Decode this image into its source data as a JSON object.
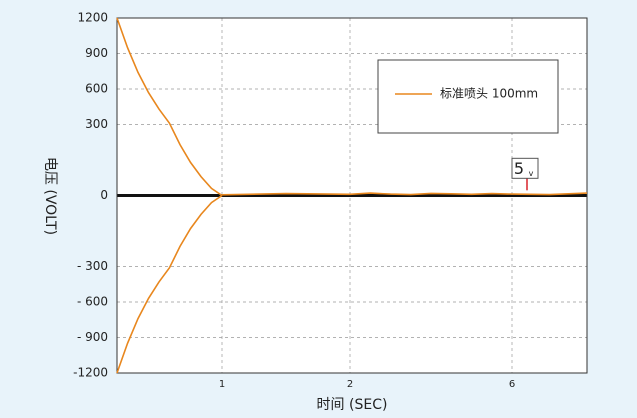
{
  "chart_data": {
    "type": "line",
    "x_label": "时间 (SEC)",
    "y_label": "电压 (VOLT)",
    "xlim": [
      0,
      7
    ],
    "xticks": [
      1,
      2,
      6
    ],
    "ylim": [
      -1200,
      1200
    ],
    "yticks": [
      1200,
      900,
      600,
      300,
      0,
      {
        "value": -300,
        "label": "- 300"
      },
      {
        "value": -600,
        "label": "- 600"
      },
      {
        "value": -900,
        "label": "- 900"
      },
      -1200
    ],
    "grid": true,
    "legend": "upper right",
    "series": [
      {
        "name": "标准喷头 100mm",
        "color": "#e8871e",
        "x": [
          0,
          0.1,
          0.2,
          0.3,
          0.4,
          0.5,
          0.6,
          0.7,
          0.8,
          0.9,
          1.0
        ],
        "values": [
          1200,
          950,
          740,
          570,
          430,
          310,
          215,
          140,
          80,
          30,
          0
        ]
      },
      {
        "color": "#e8871e",
        "x": [
          0,
          0.1,
          0.2,
          0.3,
          0.4,
          0.5,
          0.6,
          0.7,
          0.8,
          0.9,
          1.0
        ],
        "values": [
          -1200,
          -950,
          -740,
          -570,
          -430,
          -310,
          -215,
          -140,
          -80,
          -30,
          0
        ]
      },
      {
        "color": "#e8871e",
        "x": [
          1,
          1.5,
          2,
          2.5,
          3,
          3.5,
          4,
          4.5,
          5,
          5.5,
          6,
          6.5,
          7
        ],
        "values": [
          3,
          8,
          5,
          10,
          6,
          4,
          9,
          7,
          5,
          8,
          6,
          4,
          10
        ]
      }
    ],
    "annotation": {
      "text": "5",
      "unit": "v",
      "x": 6.2,
      "value": 5
    }
  }
}
